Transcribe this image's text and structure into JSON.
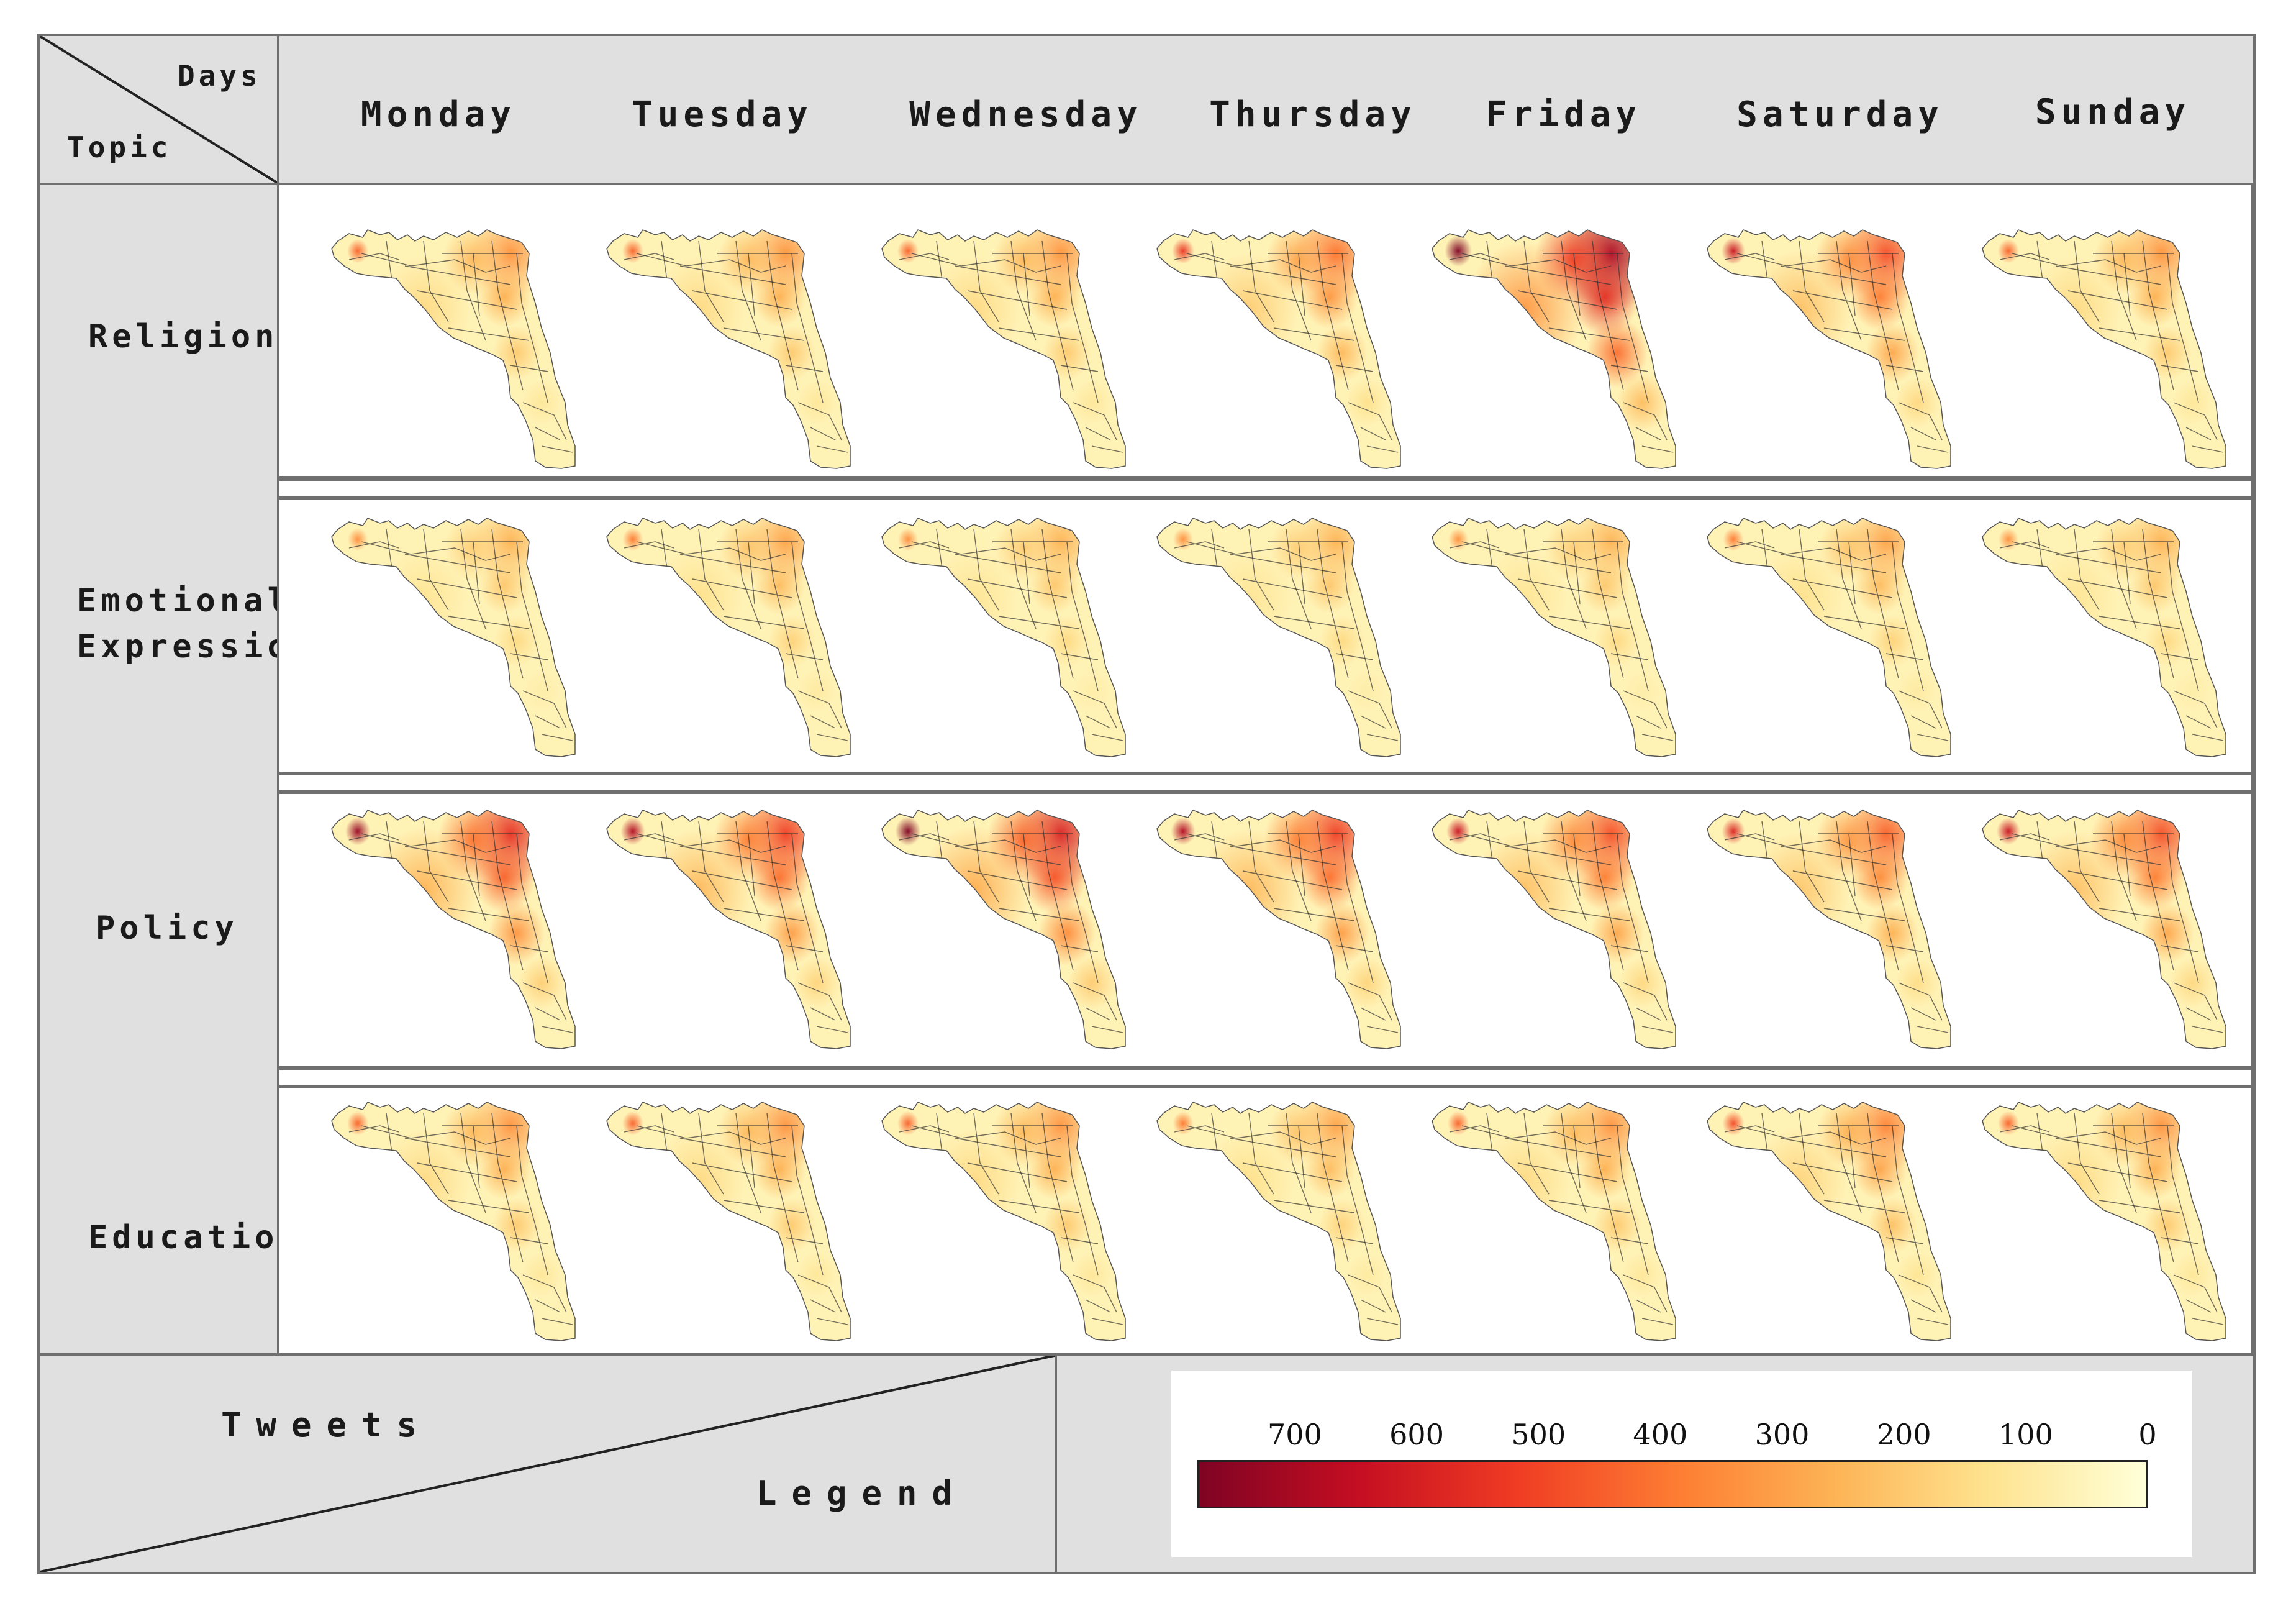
{
  "header": {
    "corner_top": "Days",
    "corner_bottom": "Topic",
    "days": [
      "Monday",
      "Tuesday",
      "Wednesday",
      "Thursday",
      "Friday",
      "Saturday",
      "Sunday"
    ]
  },
  "topics": [
    "Religion",
    "Emotional Expression",
    "Policy",
    "Education"
  ],
  "footer": {
    "left_top": "Tweets",
    "left_bottom": "Legend"
  },
  "legend": {
    "tick_labels": [
      "700",
      "600",
      "500",
      "400",
      "300",
      "200",
      "100",
      "0"
    ],
    "min": 0,
    "max": 780,
    "colors": [
      "#7f0323",
      "#c40e22",
      "#ef3b23",
      "#fd7b32",
      "#fdb254",
      "#fee38f",
      "#ffffd8"
    ]
  },
  "intensity": [
    [
      0.45,
      0.45,
      0.45,
      0.55,
      0.95,
      0.65,
      0.45
    ],
    [
      0.35,
      0.4,
      0.35,
      0.35,
      0.35,
      0.4,
      0.35
    ],
    [
      0.75,
      0.7,
      0.8,
      0.7,
      0.65,
      0.6,
      0.65
    ],
    [
      0.45,
      0.45,
      0.45,
      0.4,
      0.45,
      0.5,
      0.45
    ]
  ]
}
